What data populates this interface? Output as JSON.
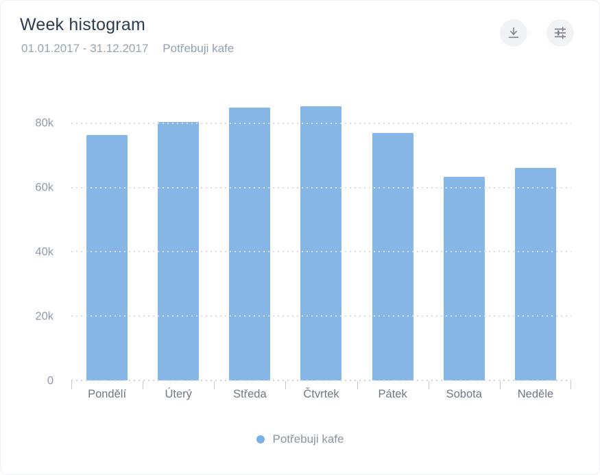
{
  "header": {
    "title": "Week histogram",
    "date_range": "01.01.2017 - 31.12.2017",
    "series_name": "Potřebuji kafe"
  },
  "toolbar": {
    "download_icon": "download-arrow",
    "settings_icon": "sliders"
  },
  "legend": {
    "label": "Potřebuji kafe"
  },
  "colors": {
    "bar": "#86b6e5",
    "legend_dot": "#79b2e8",
    "title_text": "#2d3c4e",
    "muted_text": "#98a4b3",
    "axis_tick": "#b6c9e2",
    "gridline": "#d9dde3"
  },
  "chart_data": {
    "type": "bar",
    "title": "Week histogram",
    "series_name": "Potřebuji kafe",
    "categories": [
      "Pondělí",
      "Úterý",
      "Středa",
      "Čtvrtek",
      "Pátek",
      "Sobota",
      "Neděle"
    ],
    "values": [
      76400,
      80300,
      84900,
      85300,
      77000,
      63400,
      66000
    ],
    "xlabel": "",
    "ylabel": "",
    "ylim": [
      0,
      100000
    ],
    "yticks": [
      {
        "value": 0,
        "label": "0"
      },
      {
        "value": 20000,
        "label": "20k"
      },
      {
        "value": 40000,
        "label": "40k"
      },
      {
        "value": 60000,
        "label": "60k"
      },
      {
        "value": 80000,
        "label": "80k"
      }
    ],
    "grid": "horizontal-dotted",
    "legend_position": "bottom"
  }
}
